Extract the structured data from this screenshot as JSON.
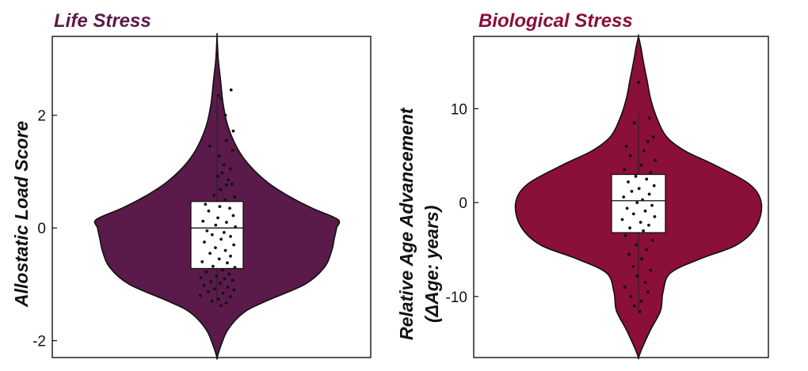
{
  "charts": [
    {
      "id": "left",
      "title": "Life Stress",
      "ylabel": [
        "Allostatic Load Score"
      ],
      "fill": "#5a1a4a",
      "ylim": [
        -2.3,
        3.4
      ],
      "ticks": [
        2,
        0,
        -2
      ],
      "tick_labels": [
        "2",
        "0",
        "-2"
      ]
    },
    {
      "id": "right",
      "title": "Biological Stress",
      "ylabel": [
        "Relative Age Advancement",
        "(ΔAge: years)"
      ],
      "fill": "#8a0f3a",
      "ylim": [
        -16.5,
        17.7
      ],
      "ticks": [
        10,
        0,
        -10
      ],
      "tick_labels": [
        "10",
        "0",
        "-10"
      ]
    }
  ],
  "chart_data": [
    {
      "type": "violin",
      "title": "Life Stress",
      "ylabel": "Allostatic Load Score",
      "ylim": [
        -2.3,
        3.4
      ],
      "yticks": [
        -2,
        0,
        2
      ],
      "grid": false,
      "box": {
        "q1": -0.72,
        "median": 0.0,
        "q3": 0.47,
        "whisker_low": -1.35,
        "whisker_high": 2.35
      },
      "density_profile": [
        {
          "y": -2.3,
          "w": 0.0
        },
        {
          "y": -2.1,
          "w": 0.03
        },
        {
          "y": -1.8,
          "w": 0.09
        },
        {
          "y": -1.5,
          "w": 0.22
        },
        {
          "y": -1.3,
          "w": 0.4
        },
        {
          "y": -1.0,
          "w": 0.72
        },
        {
          "y": -0.7,
          "w": 0.88
        },
        {
          "y": -0.4,
          "w": 0.94
        },
        {
          "y": -0.2,
          "w": 0.96
        },
        {
          "y": 0.0,
          "w": 0.98
        },
        {
          "y": 0.15,
          "w": 0.99
        },
        {
          "y": 0.35,
          "w": 0.78
        },
        {
          "y": 0.55,
          "w": 0.6
        },
        {
          "y": 0.8,
          "w": 0.42
        },
        {
          "y": 1.1,
          "w": 0.27
        },
        {
          "y": 1.4,
          "w": 0.17
        },
        {
          "y": 1.8,
          "w": 0.09
        },
        {
          "y": 2.2,
          "w": 0.05
        },
        {
          "y": 2.6,
          "w": 0.03
        },
        {
          "y": 3.0,
          "w": 0.01
        },
        {
          "y": 3.4,
          "w": 0.0
        }
      ],
      "points": [
        {
          "x": 0.52,
          "y": 2.45
        },
        {
          "x": 0.05,
          "y": 2.35
        },
        {
          "x": 0.16,
          "y": 2.3
        },
        {
          "x": 0.31,
          "y": 2.0
        },
        {
          "x": 0.6,
          "y": 1.72
        },
        {
          "x": 0.34,
          "y": 1.55
        },
        {
          "x": -0.27,
          "y": 1.45
        },
        {
          "x": 0.57,
          "y": 1.38
        },
        {
          "x": 0.08,
          "y": 1.28
        },
        {
          "x": 0.26,
          "y": 1.12
        },
        {
          "x": 0.49,
          "y": 1.05
        },
        {
          "x": 0.19,
          "y": 0.98
        },
        {
          "x": 0.03,
          "y": 0.92
        },
        {
          "x": 0.42,
          "y": 0.85
        },
        {
          "x": 0.55,
          "y": 0.78
        },
        {
          "x": 0.35,
          "y": 0.76
        },
        {
          "x": 0.13,
          "y": 0.68
        },
        {
          "x": -0.12,
          "y": 0.58
        },
        {
          "x": 0.65,
          "y": 0.55
        },
        {
          "x": 0.29,
          "y": 0.5
        },
        {
          "x": -0.43,
          "y": 0.42
        },
        {
          "x": 0.1,
          "y": 0.38
        },
        {
          "x": 0.47,
          "y": 0.35
        },
        {
          "x": -0.31,
          "y": 0.3
        },
        {
          "x": 0.6,
          "y": 0.22
        },
        {
          "x": 0.03,
          "y": 0.18
        },
        {
          "x": -0.52,
          "y": 0.12
        },
        {
          "x": 0.35,
          "y": 0.1
        },
        {
          "x": -0.05,
          "y": 0.05
        },
        {
          "x": 0.68,
          "y": 0.02
        },
        {
          "x": -0.37,
          "y": -0.05
        },
        {
          "x": 0.26,
          "y": -0.08
        },
        {
          "x": -0.18,
          "y": -0.12
        },
        {
          "x": 0.5,
          "y": -0.15
        },
        {
          "x": 0.15,
          "y": -0.2
        },
        {
          "x": -0.47,
          "y": -0.25
        },
        {
          "x": 0.62,
          "y": -0.3
        },
        {
          "x": -0.06,
          "y": -0.35
        },
        {
          "x": 0.31,
          "y": -0.4
        },
        {
          "x": -0.26,
          "y": -0.45
        },
        {
          "x": 0.5,
          "y": -0.5
        },
        {
          "x": 0.08,
          "y": -0.55
        },
        {
          "x": -0.55,
          "y": -0.6
        },
        {
          "x": 0.38,
          "y": -0.62
        },
        {
          "x": -0.15,
          "y": -0.68
        },
        {
          "x": 0.66,
          "y": -0.7
        },
        {
          "x": 0.2,
          "y": -0.75
        },
        {
          "x": -0.4,
          "y": -0.78
        },
        {
          "x": 0.45,
          "y": -0.82
        },
        {
          "x": -0.02,
          "y": -0.86
        },
        {
          "x": -0.6,
          "y": -0.88
        },
        {
          "x": 0.28,
          "y": -0.9
        },
        {
          "x": 0.57,
          "y": -0.93
        },
        {
          "x": -0.22,
          "y": -0.95
        },
        {
          "x": 0.12,
          "y": -0.98
        },
        {
          "x": -0.49,
          "y": -1.02
        },
        {
          "x": 0.4,
          "y": -1.05
        },
        {
          "x": -0.09,
          "y": -1.08
        },
        {
          "x": 0.62,
          "y": -1.1
        },
        {
          "x": -0.32,
          "y": -1.13
        },
        {
          "x": 0.22,
          "y": -1.16
        },
        {
          "x": -0.62,
          "y": -1.2
        },
        {
          "x": 0.5,
          "y": -1.22
        },
        {
          "x": 0.05,
          "y": -1.26
        },
        {
          "x": -0.19,
          "y": -1.3
        },
        {
          "x": 0.34,
          "y": -1.33
        },
        {
          "x": 0.15,
          "y": -1.38
        }
      ]
    },
    {
      "type": "violin",
      "title": "Biological Stress",
      "ylabel": "Relative Age Advancement (ΔAge: years)",
      "ylim": [
        -16.5,
        17.7
      ],
      "yticks": [
        -10,
        0,
        10
      ],
      "grid": false,
      "box": {
        "q1": -3.2,
        "median": 0.2,
        "q3": 3.0,
        "whisker_low": -11.5,
        "whisker_high": 9.5
      },
      "density_profile": [
        {
          "y": -16.5,
          "w": 0.0
        },
        {
          "y": -15.5,
          "w": 0.03
        },
        {
          "y": -13.5,
          "w": 0.1
        },
        {
          "y": -11.5,
          "w": 0.18
        },
        {
          "y": -9.5,
          "w": 0.2
        },
        {
          "y": -7.5,
          "w": 0.26
        },
        {
          "y": -6.0,
          "w": 0.5
        },
        {
          "y": -4.5,
          "w": 0.8
        },
        {
          "y": -2.5,
          "w": 0.96
        },
        {
          "y": 0.0,
          "w": 1.0
        },
        {
          "y": 2.0,
          "w": 0.9
        },
        {
          "y": 4.0,
          "w": 0.62
        },
        {
          "y": 5.5,
          "w": 0.38
        },
        {
          "y": 7.0,
          "w": 0.23
        },
        {
          "y": 9.0,
          "w": 0.15
        },
        {
          "y": 11.0,
          "w": 0.1
        },
        {
          "y": 13.0,
          "w": 0.07
        },
        {
          "y": 15.0,
          "w": 0.04
        },
        {
          "y": 16.5,
          "w": 0.02
        },
        {
          "y": 17.7,
          "w": 0.0
        }
      ],
      "points": [
        {
          "x": 0.0,
          "y": 12.8
        },
        {
          "x": 0.4,
          "y": 9.0
        },
        {
          "x": -0.15,
          "y": 8.5
        },
        {
          "x": 0.55,
          "y": 7.0
        },
        {
          "x": 0.35,
          "y": 6.5
        },
        {
          "x": -0.45,
          "y": 6.0
        },
        {
          "x": 0.2,
          "y": 5.5
        },
        {
          "x": -0.3,
          "y": 5.0
        },
        {
          "x": 0.62,
          "y": 4.5
        },
        {
          "x": 0.1,
          "y": 4.0
        },
        {
          "x": -0.52,
          "y": 3.5
        },
        {
          "x": 0.45,
          "y": 3.2
        },
        {
          "x": -0.1,
          "y": 2.8
        },
        {
          "x": 0.3,
          "y": 2.5
        },
        {
          "x": -0.38,
          "y": 2.2
        },
        {
          "x": 0.58,
          "y": 1.8
        },
        {
          "x": 0.02,
          "y": 1.5
        },
        {
          "x": -0.25,
          "y": 1.2
        },
        {
          "x": 0.4,
          "y": 0.9
        },
        {
          "x": -0.55,
          "y": 0.6
        },
        {
          "x": 0.15,
          "y": 0.3
        },
        {
          "x": -0.05,
          "y": 0.0
        },
        {
          "x": 0.5,
          "y": -0.3
        },
        {
          "x": -0.42,
          "y": -0.6
        },
        {
          "x": 0.25,
          "y": -0.9
        },
        {
          "x": -0.18,
          "y": -1.2
        },
        {
          "x": 0.6,
          "y": -1.5
        },
        {
          "x": -0.6,
          "y": -1.8
        },
        {
          "x": 0.08,
          "y": -2.1
        },
        {
          "x": 0.38,
          "y": -2.4
        },
        {
          "x": -0.32,
          "y": -2.7
        },
        {
          "x": 0.18,
          "y": -3.0
        },
        {
          "x": -0.48,
          "y": -3.5
        },
        {
          "x": 0.52,
          "y": -4.0
        },
        {
          "x": -0.08,
          "y": -4.5
        },
        {
          "x": 0.3,
          "y": -5.0
        },
        {
          "x": -0.35,
          "y": -5.5
        },
        {
          "x": 0.12,
          "y": -6.0
        },
        {
          "x": -0.2,
          "y": -6.8
        },
        {
          "x": 0.45,
          "y": -7.2
        },
        {
          "x": -0.05,
          "y": -7.8
        },
        {
          "x": 0.25,
          "y": -8.5
        },
        {
          "x": -0.5,
          "y": -9.0
        },
        {
          "x": 0.35,
          "y": -9.5
        },
        {
          "x": -0.28,
          "y": -10.0
        },
        {
          "x": 0.1,
          "y": -10.5
        },
        {
          "x": -0.15,
          "y": -11.0
        },
        {
          "x": 0.05,
          "y": -11.6
        }
      ]
    }
  ]
}
